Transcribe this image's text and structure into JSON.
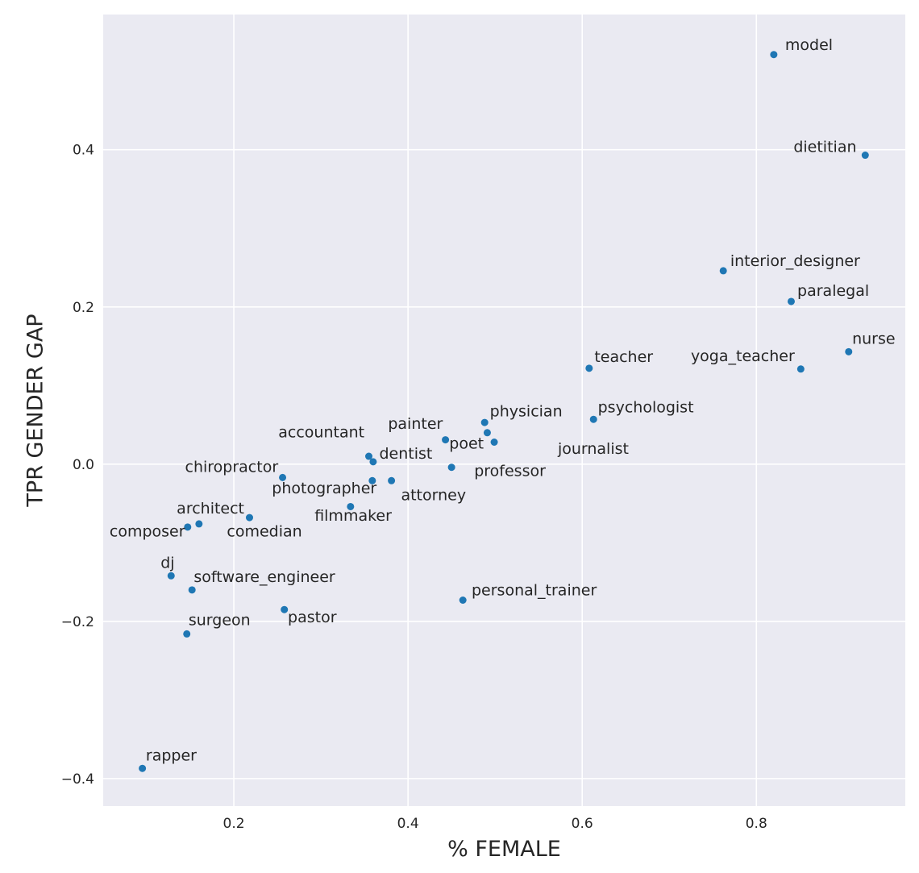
{
  "chart_data": {
    "type": "scatter",
    "title": "",
    "xlabel": "% FEMALE",
    "ylabel": "TPR GENDER GAP",
    "xlim": [
      0.05,
      0.971
    ],
    "ylim": [
      -0.435,
      0.572
    ],
    "x_ticks": [
      0.2,
      0.4,
      0.6,
      0.8
    ],
    "x_tick_labels": [
      "0.2",
      "0.4",
      "0.6",
      "0.8"
    ],
    "y_ticks": [
      0.4,
      0.2,
      0.0,
      -0.2,
      -0.4
    ],
    "y_tick_labels": [
      "0.4",
      "0.2",
      "0.0",
      "−0.2",
      "−0.4"
    ],
    "grid": true,
    "legend": false,
    "background_color": "#eaeaf2",
    "gridline_color": "#ffffff",
    "point_color": "#1f77b4",
    "text_color": "#262626",
    "points": [
      {
        "label": "model",
        "x": 0.82,
        "y": 0.521,
        "lx": 0.833,
        "ly": 0.527,
        "anchor": "start"
      },
      {
        "label": "dietitian",
        "x": 0.925,
        "y": 0.393,
        "lx": 0.915,
        "ly": 0.397,
        "anchor": "end"
      },
      {
        "label": "interior_designer",
        "x": 0.762,
        "y": 0.246,
        "lx": 0.77,
        "ly": 0.252,
        "anchor": "start"
      },
      {
        "label": "paralegal",
        "x": 0.84,
        "y": 0.207,
        "lx": 0.847,
        "ly": 0.214,
        "anchor": "start"
      },
      {
        "label": "nurse",
        "x": 0.906,
        "y": 0.143,
        "lx": 0.91,
        "ly": 0.153,
        "anchor": "start"
      },
      {
        "label": "yoga_teacher",
        "x": 0.851,
        "y": 0.121,
        "lx": 0.844,
        "ly": 0.131,
        "anchor": "end"
      },
      {
        "label": "teacher",
        "x": 0.608,
        "y": 0.122,
        "lx": 0.614,
        "ly": 0.13,
        "anchor": "start"
      },
      {
        "label": "psychologist",
        "x": 0.613,
        "y": 0.057,
        "lx": 0.618,
        "ly": 0.066,
        "anchor": "start"
      },
      {
        "label": "physician",
        "x": 0.488,
        "y": 0.053,
        "lx": 0.494,
        "ly": 0.061,
        "anchor": "start"
      },
      {
        "label": "poet",
        "x": 0.491,
        "y": 0.04,
        "lx": 0.487,
        "ly": 0.02,
        "anchor": "end"
      },
      {
        "label": "journalist",
        "x": 0.499,
        "y": 0.028,
        "lx": 0.572,
        "ly": 0.013,
        "anchor": "start"
      },
      {
        "label": "painter",
        "x": 0.443,
        "y": 0.031,
        "lx": 0.44,
        "ly": 0.045,
        "anchor": "end"
      },
      {
        "label": "professor",
        "x": 0.45,
        "y": -0.004,
        "lx": 0.476,
        "ly": -0.015,
        "anchor": "start"
      },
      {
        "label": "accountant",
        "x": 0.355,
        "y": 0.01,
        "lx": 0.35,
        "ly": 0.034,
        "anchor": "end"
      },
      {
        "label": "dentist",
        "x": 0.36,
        "y": 0.003,
        "lx": 0.367,
        "ly": 0.007,
        "anchor": "start"
      },
      {
        "label": "chiropractor",
        "x": 0.256,
        "y": -0.017,
        "lx": 0.251,
        "ly": -0.01,
        "anchor": "end"
      },
      {
        "label": "photographer",
        "x": 0.359,
        "y": -0.021,
        "lx": 0.364,
        "ly": -0.037,
        "anchor": "end"
      },
      {
        "label": "attorney",
        "x": 0.381,
        "y": -0.021,
        "lx": 0.392,
        "ly": -0.046,
        "anchor": "start"
      },
      {
        "label": "filmmaker",
        "x": 0.334,
        "y": -0.054,
        "lx": 0.337,
        "ly": -0.072,
        "anchor": "middle"
      },
      {
        "label": "architect",
        "x": 0.218,
        "y": -0.068,
        "lx": 0.212,
        "ly": -0.063,
        "anchor": "end"
      },
      {
        "label": "comedian",
        "x": 0.16,
        "y": -0.076,
        "lx": 0.192,
        "ly": -0.092,
        "anchor": "start"
      },
      {
        "label": "composer",
        "x": 0.147,
        "y": -0.08,
        "lx": 0.144,
        "ly": -0.092,
        "anchor": "end"
      },
      {
        "label": "dj",
        "x": 0.128,
        "y": -0.142,
        "lx": 0.132,
        "ly": -0.132,
        "anchor": "end"
      },
      {
        "label": "software_engineer",
        "x": 0.152,
        "y": -0.16,
        "lx": 0.154,
        "ly": -0.15,
        "anchor": "start"
      },
      {
        "label": "surgeon",
        "x": 0.146,
        "y": -0.216,
        "lx": 0.148,
        "ly": -0.205,
        "anchor": "start"
      },
      {
        "label": "pastor",
        "x": 0.258,
        "y": -0.185,
        "lx": 0.262,
        "ly": -0.201,
        "anchor": "start"
      },
      {
        "label": "rapper",
        "x": 0.095,
        "y": -0.387,
        "lx": 0.099,
        "ly": -0.377,
        "anchor": "start"
      },
      {
        "label": "personal_trainer",
        "x": 0.463,
        "y": -0.173,
        "lx": 0.473,
        "ly": -0.167,
        "anchor": "start"
      }
    ]
  }
}
